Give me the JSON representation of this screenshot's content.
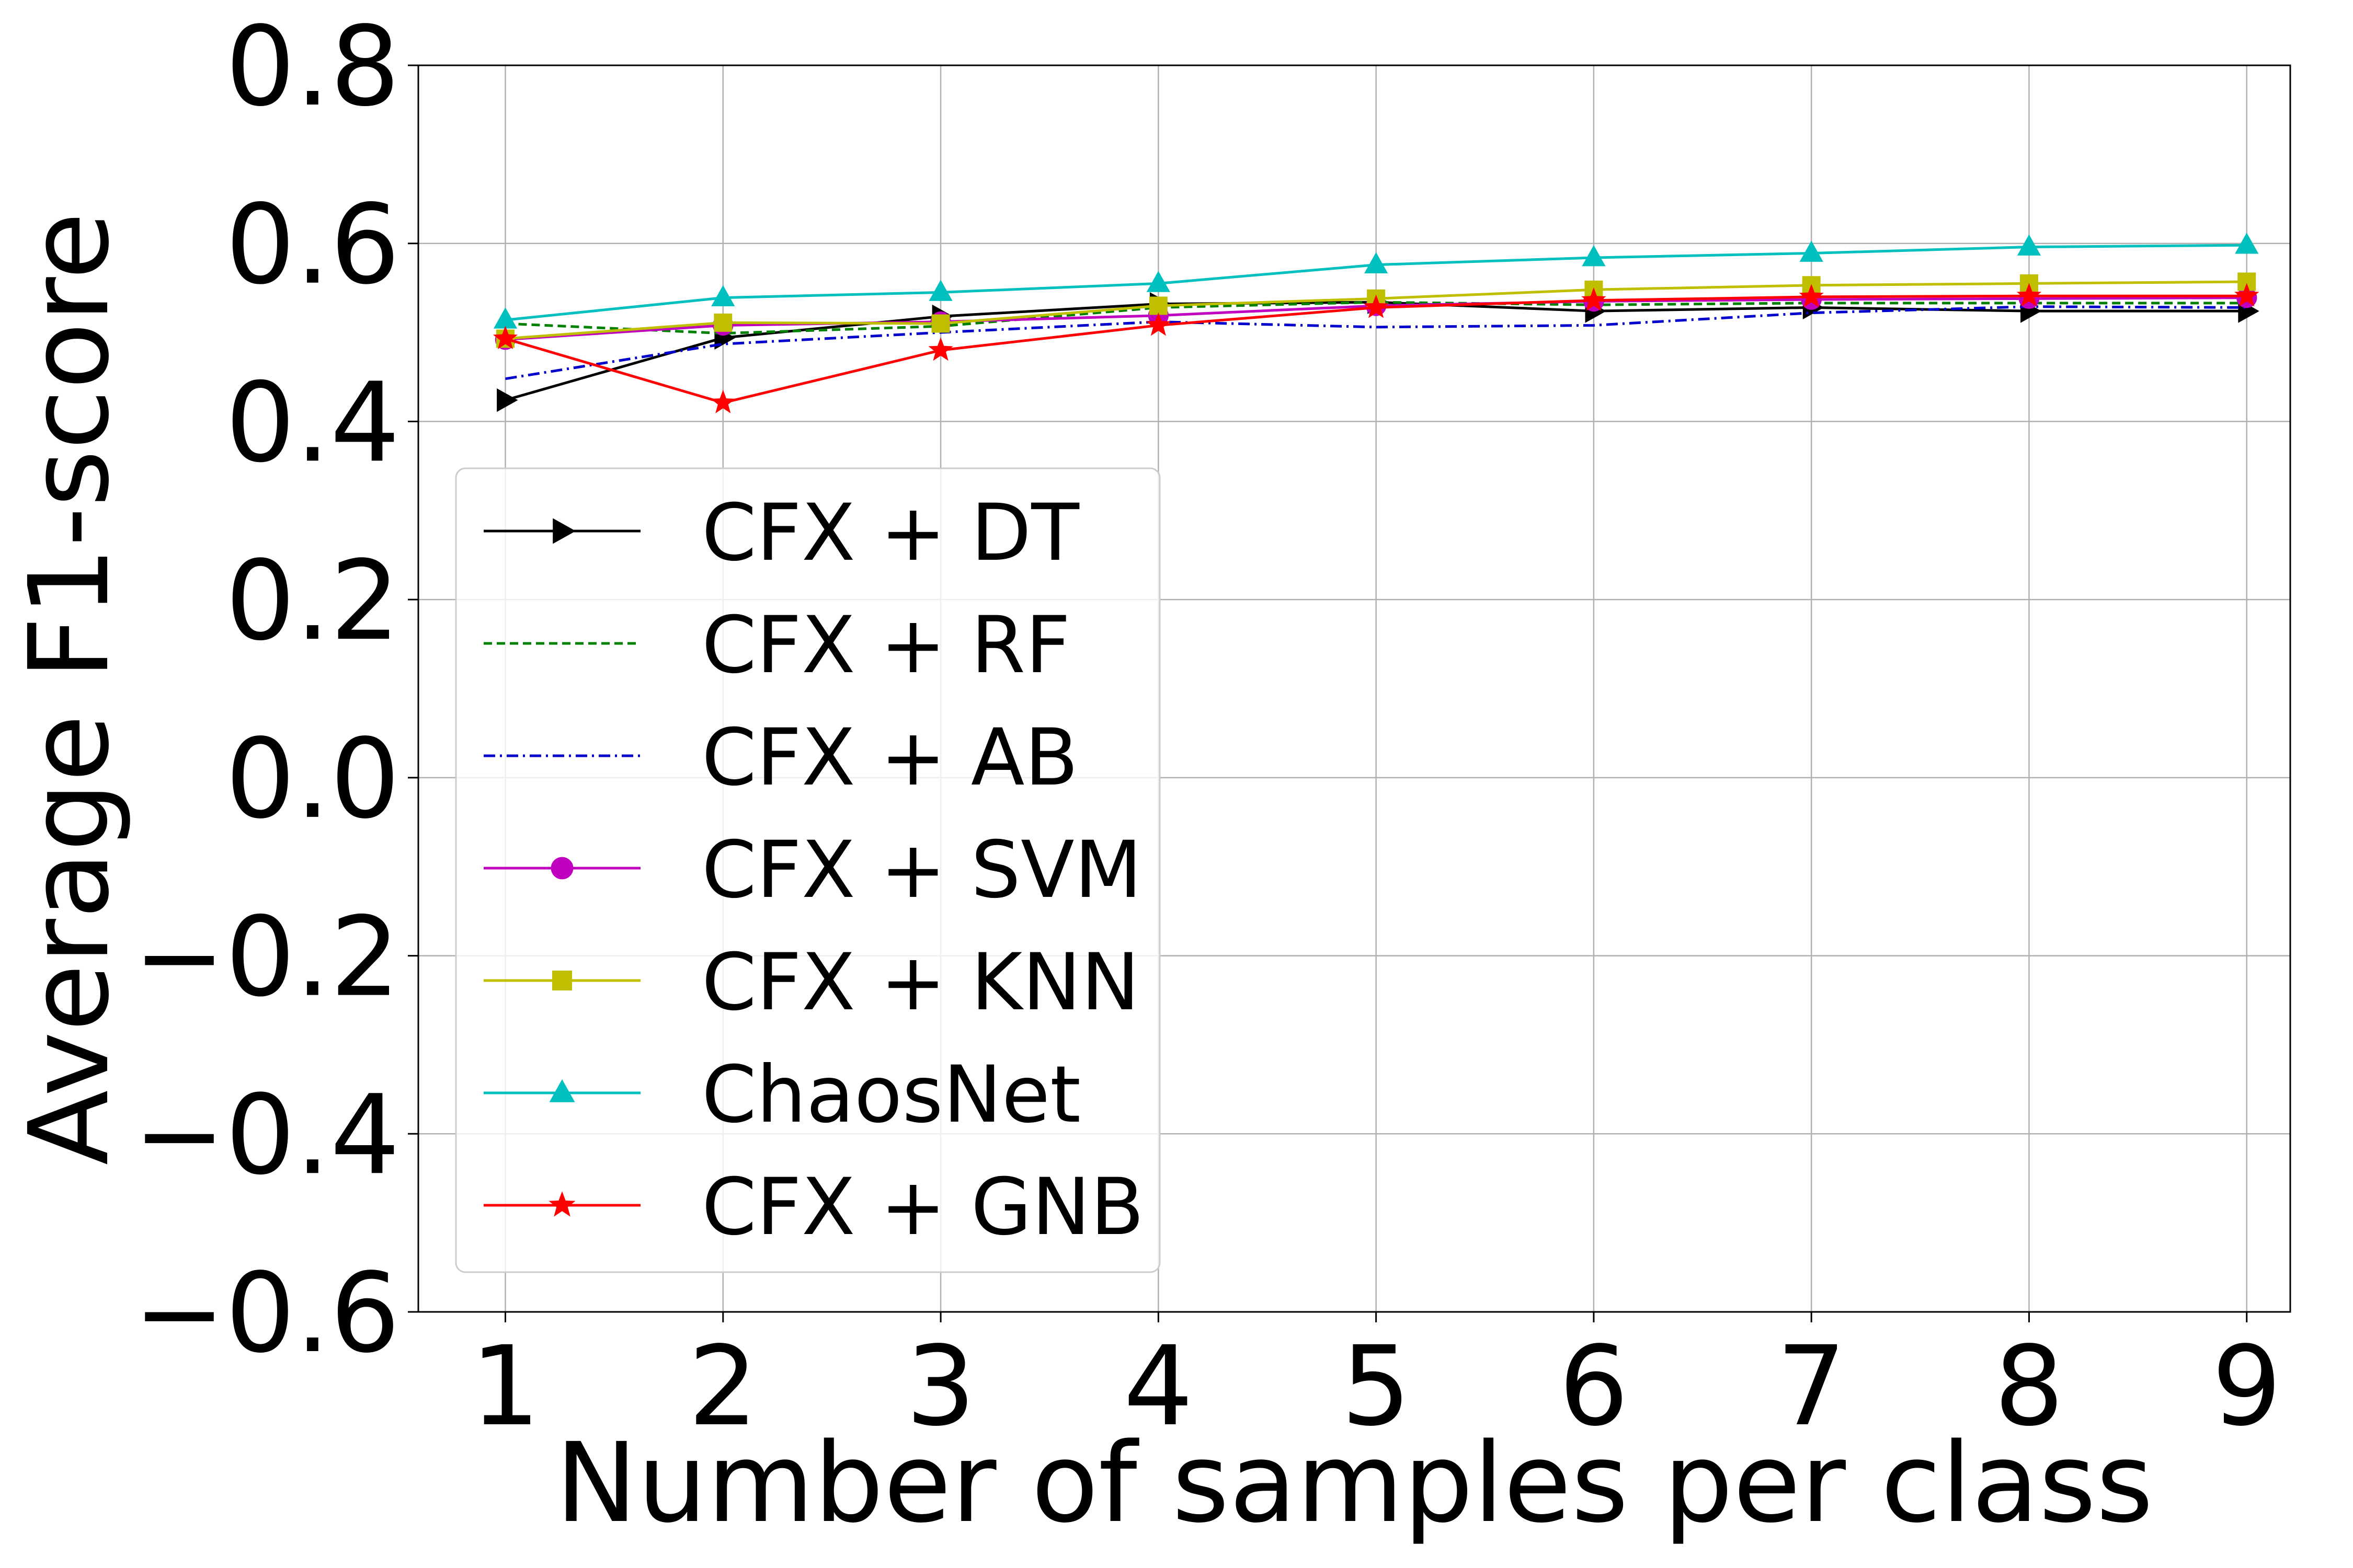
{
  "chart_data": {
    "type": "line",
    "title": "",
    "xlabel": "Number of samples per class",
    "ylabel": "Average F1-score",
    "x": [
      1,
      2,
      3,
      4,
      5,
      6,
      7,
      8,
      9
    ],
    "xlim": [
      0.6,
      9.2
    ],
    "ylim": [
      -0.6,
      0.8
    ],
    "xticks": [
      1,
      2,
      3,
      4,
      5,
      6,
      7,
      8,
      9
    ],
    "yticks": [
      -0.6,
      -0.4,
      -0.2,
      0.0,
      0.2,
      0.4,
      0.6,
      0.8
    ],
    "ytick_labels": [
      "−0.6",
      "−0.4",
      "−0.2",
      "0.0",
      "0.2",
      "0.4",
      "0.6",
      "0.8"
    ],
    "grid": true,
    "legend_position": "lower-left",
    "series": [
      {
        "name": "CFX + DT",
        "color": "#000000",
        "dash": "solid",
        "marker": "triangle-right",
        "values": [
          0.424,
          0.494,
          0.518,
          0.532,
          0.534,
          0.524,
          0.528,
          0.524,
          0.524
        ]
      },
      {
        "name": "CFX + RF",
        "color": "#008000",
        "dash": "dashed",
        "marker": "none",
        "values": [
          0.51,
          0.499,
          0.507,
          0.528,
          0.534,
          0.531,
          0.533,
          0.533,
          0.533
        ]
      },
      {
        "name": "CFX + AB",
        "color": "#0000cc",
        "dash": "dashdot",
        "marker": "none",
        "values": [
          0.448,
          0.487,
          0.5,
          0.512,
          0.506,
          0.508,
          0.522,
          0.529,
          0.528
        ]
      },
      {
        "name": "CFX + SVM",
        "color": "#bf00bf",
        "dash": "solid",
        "marker": "circle",
        "values": [
          0.492,
          0.508,
          0.512,
          0.519,
          0.53,
          0.535,
          0.537,
          0.538,
          0.539
        ]
      },
      {
        "name": "CFX + KNN",
        "color": "#bfbf00",
        "dash": "solid",
        "marker": "square",
        "values": [
          0.493,
          0.511,
          0.51,
          0.53,
          0.538,
          0.548,
          0.553,
          0.555,
          0.557
        ]
      },
      {
        "name": "ChaosNet",
        "color": "#00bfbf",
        "dash": "solid",
        "marker": "triangle-up",
        "values": [
          0.514,
          0.539,
          0.545,
          0.555,
          0.576,
          0.584,
          0.589,
          0.596,
          0.598
        ]
      },
      {
        "name": "CFX + GNB",
        "color": "#ff0000",
        "dash": "solid",
        "marker": "star",
        "values": [
          0.493,
          0.421,
          0.48,
          0.508,
          0.528,
          0.536,
          0.54,
          0.541,
          0.541
        ]
      }
    ]
  }
}
